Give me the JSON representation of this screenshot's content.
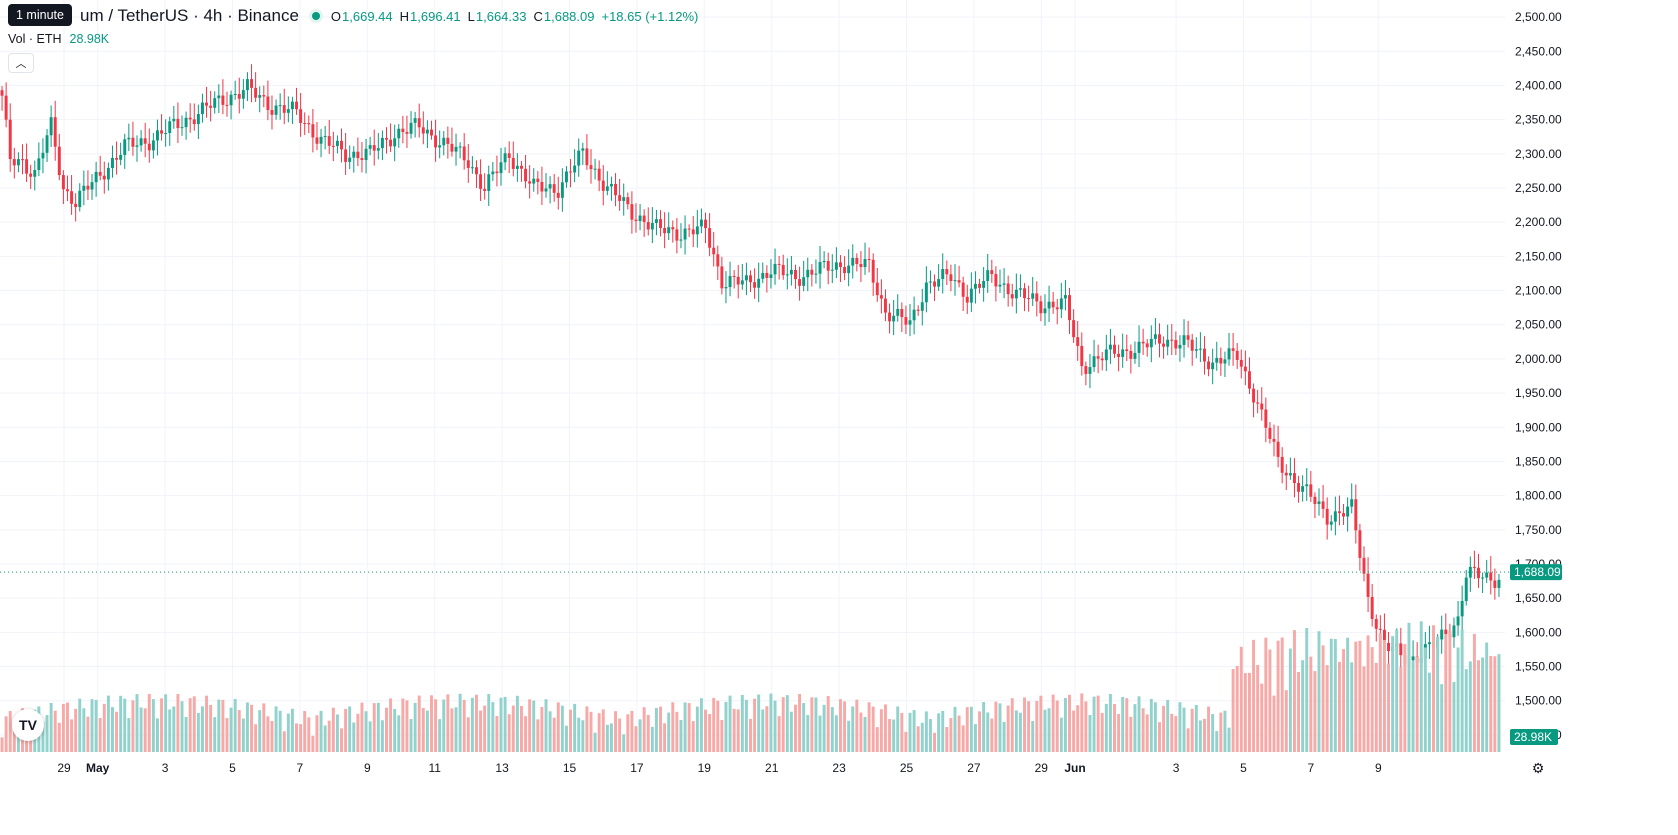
{
  "header": {
    "symbol": "um / TetherUS · 4h · Binance",
    "tooltip": "1 minute",
    "ohlc": [
      {
        "key": "O",
        "value": "1,669.44"
      },
      {
        "key": "H",
        "value": "1,696.41"
      },
      {
        "key": "L",
        "value": "1,664.33"
      },
      {
        "key": "C",
        "value": "1,688.09"
      }
    ],
    "change": "+18.65 (+1.12%)",
    "volume_label": "Vol · ETH",
    "volume_value": "28.98K",
    "collapse_icon": "chevron-up-icon"
  },
  "colors": {
    "up": "#089981",
    "down": "#f23645",
    "vol_up": "#92d2cc",
    "vol_down": "#f7a9a7",
    "grid": "#f0f3fa",
    "text": "#131722"
  },
  "chart_data": {
    "type": "candlestick",
    "title": "um / TetherUS · 4h · Binance",
    "y_range": [
      1425,
      2525
    ],
    "y_ticks": [
      "2,500.00",
      "2,450.00",
      "2,400.00",
      "2,350.00",
      "2,300.00",
      "2,250.00",
      "2,200.00",
      "2,150.00",
      "2,100.00",
      "2,050.00",
      "2,000.00",
      "1,950.00",
      "1,900.00",
      "1,850.00",
      "1,800.00",
      "1,750.00",
      "1,700.00",
      "1,650.00",
      "1,600.00",
      "1,550.00",
      "1,500.00",
      "1,450.00"
    ],
    "x_labels": [
      "29",
      "May",
      "3",
      "5",
      "7",
      "9",
      "11",
      "13",
      "15",
      "17",
      "19",
      "21",
      "23",
      "25",
      "27",
      "29",
      "Jun",
      "3",
      "5",
      "7",
      "9"
    ],
    "last_price": "1,688.09",
    "last_volume": "28.98K",
    "candles_per_day": 6,
    "first_day_offset": 3.5,
    "days_shown": 43.6,
    "anchors": [
      [
        0,
        2380
      ],
      [
        2,
        2290
      ],
      [
        5,
        2290
      ],
      [
        8,
        2270
      ],
      [
        12,
        2340
      ],
      [
        15,
        2250
      ],
      [
        18,
        2230
      ],
      [
        24,
        2270
      ],
      [
        30,
        2310
      ],
      [
        36,
        2320
      ],
      [
        42,
        2340
      ],
      [
        48,
        2360
      ],
      [
        54,
        2380
      ],
      [
        60,
        2395
      ],
      [
        66,
        2370
      ],
      [
        72,
        2360
      ],
      [
        78,
        2320
      ],
      [
        84,
        2300
      ],
      [
        90,
        2300
      ],
      [
        96,
        2330
      ],
      [
        102,
        2340
      ],
      [
        108,
        2315
      ],
      [
        114,
        2290
      ],
      [
        118,
        2250
      ],
      [
        124,
        2300
      ],
      [
        130,
        2250
      ],
      [
        136,
        2250
      ],
      [
        142,
        2300
      ],
      [
        148,
        2250
      ],
      [
        154,
        2215
      ],
      [
        160,
        2190
      ],
      [
        166,
        2185
      ],
      [
        172,
        2190
      ],
      [
        176,
        2115
      ],
      [
        182,
        2110
      ],
      [
        188,
        2130
      ],
      [
        194,
        2120
      ],
      [
        200,
        2130
      ],
      [
        206,
        2140
      ],
      [
        212,
        2135
      ],
      [
        216,
        2070
      ],
      [
        222,
        2050
      ],
      [
        226,
        2110
      ],
      [
        232,
        2120
      ],
      [
        236,
        2095
      ],
      [
        242,
        2120
      ],
      [
        248,
        2095
      ],
      [
        254,
        2080
      ],
      [
        260,
        2080
      ],
      [
        264,
        1990
      ],
      [
        272,
        2010
      ],
      [
        278,
        2015
      ],
      [
        284,
        2030
      ],
      [
        290,
        2020
      ],
      [
        296,
        1995
      ],
      [
        302,
        2005
      ],
      [
        306,
        1950
      ],
      [
        312,
        1850
      ],
      [
        318,
        1810
      ],
      [
        324,
        1770
      ],
      [
        330,
        1780
      ],
      [
        334,
        1650
      ],
      [
        338,
        1580
      ],
      [
        344,
        1560
      ],
      [
        350,
        1580
      ],
      [
        356,
        1620
      ],
      [
        358,
        1685
      ],
      [
        364,
        1680
      ],
      [
        366,
        1680
      ]
    ],
    "volume_range": [
      0,
      60
    ]
  }
}
